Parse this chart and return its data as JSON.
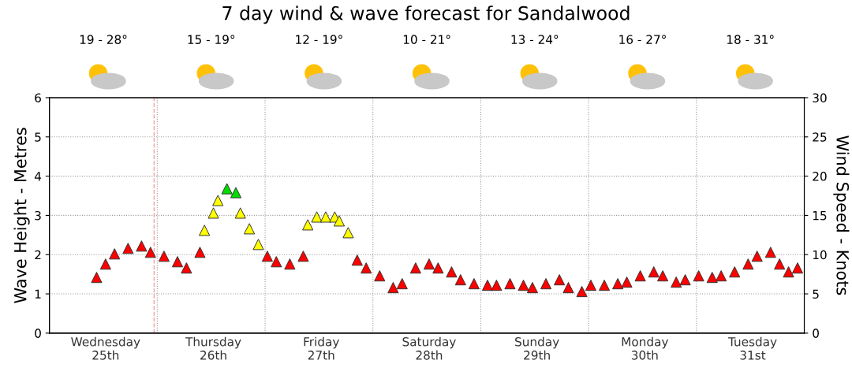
{
  "chart_data": {
    "type": "scatter",
    "title": "7 day wind & wave forecast for Sandalwood",
    "annotations": [
      "19 - 28°",
      "15 - 19°",
      "12 - 19°",
      "10 - 21°",
      "13 - 24°",
      "16 - 27°",
      "18 - 31°"
    ],
    "ylabel": "Wave Height - Metres",
    "y2label": "Wind Speed - Knots",
    "categories": [
      null,
      null,
      null,
      null,
      null,
      null,
      null,
      null,
      null,
      null,
      null,
      null,
      "Wednesday\n25th",
      null,
      null,
      null,
      null,
      null,
      null,
      null,
      null,
      null,
      null,
      null,
      null,
      null,
      null,
      null,
      null,
      null,
      null,
      null,
      null,
      null,
      null,
      null,
      "Thursday\n26th",
      null,
      null,
      null,
      null,
      null,
      null,
      null,
      null,
      null,
      null,
      null,
      null,
      null,
      null,
      null,
      null,
      null,
      null,
      null,
      null,
      null,
      null,
      null,
      "Friday\n27th",
      null,
      null,
      null,
      null,
      null,
      null,
      null,
      null,
      null,
      null,
      null,
      null,
      null,
      null,
      null,
      null,
      null,
      null,
      null,
      null,
      null,
      null,
      null,
      "Saturday\n28th",
      null,
      null,
      null,
      null,
      null,
      null,
      null,
      null,
      null,
      null,
      null,
      null,
      null,
      null,
      null,
      null,
      null,
      null,
      null,
      null,
      null,
      null,
      null,
      "Sunday\n29th",
      null,
      null,
      null,
      null,
      null,
      null,
      null,
      null,
      null,
      null,
      null,
      null,
      null,
      null,
      null,
      null,
      null,
      null,
      null,
      null,
      null,
      null,
      null,
      "Monday\n30th",
      null,
      null,
      null,
      null,
      null,
      null,
      null,
      null,
      null,
      null,
      null,
      null,
      null,
      null,
      null,
      null,
      null,
      null,
      null,
      null,
      null,
      null,
      null,
      "Tuesday\n31st",
      null,
      null,
      null,
      null,
      null,
      null,
      null,
      null,
      null,
      null,
      null
    ],
    "ylim": [
      0,
      6
    ],
    "yticks": [
      0,
      1,
      2,
      3,
      4,
      5,
      6
    ],
    "y2lim": [
      0,
      30
    ],
    "y2ticks": [
      0,
      5,
      10,
      15,
      20,
      25,
      30
    ],
    "grid": true,
    "marker": "triangle",
    "series": [
      {
        "axis": "y2",
        "values": [
          null,
          null,
          null,
          null,
          null,
          null,
          null,
          null,
          null,
          null,
          7.1,
          null,
          8.8,
          null,
          10.1,
          null,
          null,
          10.8,
          null,
          null,
          11.1,
          null,
          10.3,
          null,
          null,
          9.8,
          null,
          null,
          9.1,
          null,
          8.3,
          null,
          null,
          10.3,
          13.1,
          null,
          15.3,
          16.9,
          null,
          18.4,
          null,
          17.9,
          15.3,
          null,
          13.3,
          null,
          11.3,
          null,
          9.8,
          null,
          9.1,
          null,
          null,
          8.8,
          null,
          null,
          9.8,
          13.8,
          null,
          14.8,
          null,
          14.8,
          null,
          14.8,
          14.3,
          null,
          12.8,
          null,
          9.3,
          null,
          8.3,
          null,
          null,
          7.3,
          null,
          null,
          5.8,
          null,
          6.3,
          null,
          null,
          8.3,
          null,
          null,
          8.8,
          null,
          8.3,
          null,
          null,
          7.8,
          null,
          6.8,
          null,
          null,
          6.3,
          null,
          null,
          6.1,
          null,
          6.1,
          null,
          null,
          6.3,
          null,
          null,
          6.1,
          null,
          5.8,
          null,
          null,
          6.3,
          null,
          null,
          6.8,
          null,
          5.8,
          null,
          null,
          5.3,
          null,
          6.1,
          null,
          null,
          6.1,
          null,
          null,
          6.3,
          null,
          6.5,
          null,
          null,
          7.3,
          null,
          null,
          7.8,
          null,
          7.3,
          null,
          null,
          6.5,
          null,
          6.8,
          null,
          null,
          7.3,
          null,
          null,
          7.1,
          null,
          7.3,
          null,
          null,
          7.8,
          null,
          null,
          8.8,
          null,
          9.8,
          null,
          null,
          10.3,
          null,
          8.8,
          null,
          7.8,
          null,
          8.3,
          null
        ],
        "colors": [
          null,
          null,
          null,
          null,
          null,
          null,
          null,
          null,
          null,
          null,
          "#ff0000",
          null,
          "#ff0000",
          null,
          "#ff0000",
          null,
          null,
          "#ff0000",
          null,
          null,
          "#ff0000",
          null,
          "#ff0000",
          null,
          null,
          "#ff0000",
          null,
          null,
          "#ff0000",
          null,
          "#ff0000",
          null,
          null,
          "#ff0000",
          "#ffff00",
          null,
          "#ffff00",
          "#ffff00",
          null,
          "#00dd00",
          null,
          "#00dd00",
          "#ffff00",
          null,
          "#ffff00",
          null,
          "#ffff00",
          null,
          "#ff0000",
          null,
          "#ff0000",
          null,
          null,
          "#ff0000",
          null,
          null,
          "#ff0000",
          "#ffff00",
          null,
          "#ffff00",
          null,
          "#ffff00",
          null,
          "#ffff00",
          "#ffff00",
          null,
          "#ffff00",
          null,
          "#ff0000",
          null,
          "#ff0000",
          null,
          null,
          "#ff0000",
          null,
          null,
          "#ff0000",
          null,
          "#ff0000",
          null,
          null,
          "#ff0000",
          null,
          null,
          "#ff0000",
          null,
          "#ff0000",
          null,
          null,
          "#ff0000",
          null,
          "#ff0000",
          null,
          null,
          "#ff0000",
          null,
          null,
          "#ff0000",
          null,
          "#ff0000",
          null,
          null,
          "#ff0000",
          null,
          null,
          "#ff0000",
          null,
          "#ff0000",
          null,
          null,
          "#ff0000",
          null,
          null,
          "#ff0000",
          null,
          "#ff0000",
          null,
          null,
          "#ff0000",
          null,
          "#ff0000",
          null,
          null,
          "#ff0000",
          null,
          null,
          "#ff0000",
          null,
          "#ff0000",
          null,
          null,
          "#ff0000",
          null,
          null,
          "#ff0000",
          null,
          "#ff0000",
          null,
          null,
          "#ff0000",
          null,
          "#ff0000",
          null,
          null,
          "#ff0000",
          null,
          null,
          "#ff0000",
          null,
          "#ff0000",
          null,
          null,
          "#ff0000",
          null,
          null,
          "#ff0000",
          null,
          "#ff0000",
          null,
          null,
          "#ff0000",
          null,
          "#ff0000",
          null,
          "#ff0000",
          null,
          "#ff0000",
          null
        ]
      }
    ]
  }
}
